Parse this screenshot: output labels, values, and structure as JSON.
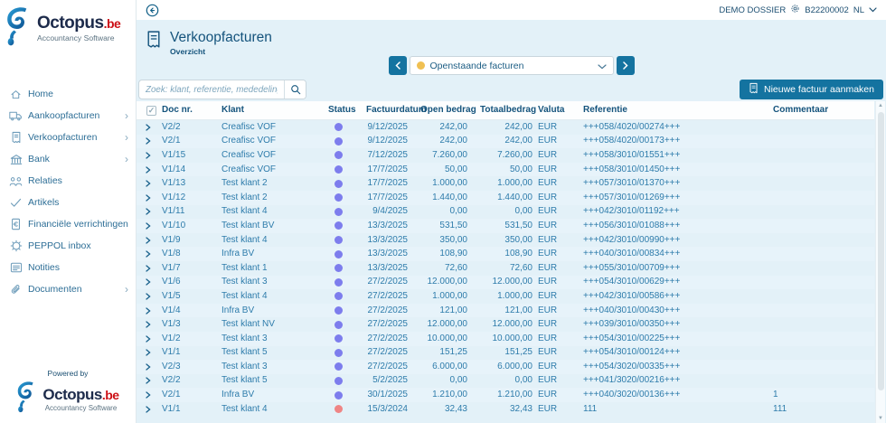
{
  "topbar": {
    "dossier": "DEMO DOSSIER",
    "code": "B22200002",
    "lang": "NL"
  },
  "sidebar": {
    "logo": {
      "name": "Octopus",
      "tld": ".be",
      "tagline": "Accountancy Software"
    },
    "items": [
      {
        "id": "home",
        "label": "Home",
        "icon": "home",
        "chevron": false
      },
      {
        "id": "aankoopfacturen",
        "label": "Aankoopfacturen",
        "icon": "truck",
        "chevron": true
      },
      {
        "id": "verkoopfacturen",
        "label": "Verkoopfacturen",
        "icon": "invoice",
        "chevron": true
      },
      {
        "id": "bank",
        "label": "Bank",
        "icon": "bank",
        "chevron": true
      },
      {
        "id": "relaties",
        "label": "Relaties",
        "icon": "people",
        "chevron": false
      },
      {
        "id": "artikels",
        "label": "Artikels",
        "icon": "check",
        "chevron": false
      },
      {
        "id": "financiele-verrichtingen",
        "label": "Financiële verrichtingen",
        "icon": "doc-euro",
        "chevron": false
      },
      {
        "id": "peppol-inbox",
        "label": "PEPPOL inbox",
        "icon": "gear-globe",
        "chevron": false
      },
      {
        "id": "notities",
        "label": "Notities",
        "icon": "note",
        "chevron": false
      },
      {
        "id": "documenten",
        "label": "Documenten",
        "icon": "paperclip",
        "chevron": true
      }
    ],
    "powered_by": "Powered by"
  },
  "header": {
    "title": "Verkoopfacturen",
    "subtitle": "Overzicht"
  },
  "filter": {
    "selected": "Openstaande facturen"
  },
  "search": {
    "placeholder": "Zoek: klant, referentie, mededeling"
  },
  "actions": {
    "new_invoice": "Nieuwe factuur aanmaken"
  },
  "table": {
    "columns": [
      "Doc nr.",
      "Klant",
      "Status",
      "Factuurdatum",
      "Open bedrag",
      "Totaalbedrag",
      "Valuta",
      "Referentie",
      "Commentaar"
    ],
    "rows": [
      {
        "doc": "V2/2",
        "klant": "Creafisc VOF",
        "status": "open",
        "datum": "9/12/2025",
        "open": "242,00",
        "totaal": "242,00",
        "valuta": "EUR",
        "referentie": "+++058/4020/00274+++",
        "commentaar": ""
      },
      {
        "doc": "V2/1",
        "klant": "Creafisc VOF",
        "status": "open",
        "datum": "9/12/2025",
        "open": "242,00",
        "totaal": "242,00",
        "valuta": "EUR",
        "referentie": "+++058/4020/00173+++",
        "commentaar": ""
      },
      {
        "doc": "V1/15",
        "klant": "Creafisc VOF",
        "status": "open",
        "datum": "7/12/2025",
        "open": "7.260,00",
        "totaal": "7.260,00",
        "valuta": "EUR",
        "referentie": "+++058/3010/01551+++",
        "commentaar": ""
      },
      {
        "doc": "V1/14",
        "klant": "Creafisc VOF",
        "status": "open",
        "datum": "17/7/2025",
        "open": "50,00",
        "totaal": "50,00",
        "valuta": "EUR",
        "referentie": "+++058/3010/01450+++",
        "commentaar": ""
      },
      {
        "doc": "V1/13",
        "klant": "Test klant 2",
        "status": "open",
        "datum": "17/7/2025",
        "open": "1.000,00",
        "totaal": "1.000,00",
        "valuta": "EUR",
        "referentie": "+++057/3010/01370+++",
        "commentaar": ""
      },
      {
        "doc": "V1/12",
        "klant": "Test klant 2",
        "status": "open",
        "datum": "17/7/2025",
        "open": "1.440,00",
        "totaal": "1.440,00",
        "valuta": "EUR",
        "referentie": "+++057/3010/01269+++",
        "commentaar": ""
      },
      {
        "doc": "V1/11",
        "klant": "Test klant 4",
        "status": "open",
        "datum": "9/4/2025",
        "open": "0,00",
        "totaal": "0,00",
        "valuta": "EUR",
        "referentie": "+++042/3010/01192+++",
        "commentaar": ""
      },
      {
        "doc": "V1/10",
        "klant": "Test klant BV",
        "status": "open",
        "datum": "13/3/2025",
        "open": "531,50",
        "totaal": "531,50",
        "valuta": "EUR",
        "referentie": "+++056/3010/01088+++",
        "commentaar": ""
      },
      {
        "doc": "V1/9",
        "klant": "Test klant 4",
        "status": "open",
        "datum": "13/3/2025",
        "open": "350,00",
        "totaal": "350,00",
        "valuta": "EUR",
        "referentie": "+++042/3010/00990+++",
        "commentaar": ""
      },
      {
        "doc": "V1/8",
        "klant": "Infra BV",
        "status": "open",
        "datum": "13/3/2025",
        "open": "108,90",
        "totaal": "108,90",
        "valuta": "EUR",
        "referentie": "+++040/3010/00834+++",
        "commentaar": ""
      },
      {
        "doc": "V1/7",
        "klant": "Test klant 1",
        "status": "open",
        "datum": "13/3/2025",
        "open": "72,60",
        "totaal": "72,60",
        "valuta": "EUR",
        "referentie": "+++055/3010/00709+++",
        "commentaar": ""
      },
      {
        "doc": "V1/6",
        "klant": "Test klant 3",
        "status": "open",
        "datum": "27/2/2025",
        "open": "12.000,00",
        "totaal": "12.000,00",
        "valuta": "EUR",
        "referentie": "+++054/3010/00629+++",
        "commentaar": ""
      },
      {
        "doc": "V1/5",
        "klant": "Test klant 4",
        "status": "open",
        "datum": "27/2/2025",
        "open": "1.000,00",
        "totaal": "1.000,00",
        "valuta": "EUR",
        "referentie": "+++042/3010/00586+++",
        "commentaar": ""
      },
      {
        "doc": "V1/4",
        "klant": "Infra BV",
        "status": "open",
        "datum": "27/2/2025",
        "open": "121,00",
        "totaal": "121,00",
        "valuta": "EUR",
        "referentie": "+++040/3010/00430+++",
        "commentaar": ""
      },
      {
        "doc": "V1/3",
        "klant": "Test klant NV",
        "status": "open",
        "datum": "27/2/2025",
        "open": "12.000,00",
        "totaal": "12.000,00",
        "valuta": "EUR",
        "referentie": "+++039/3010/00350+++",
        "commentaar": ""
      },
      {
        "doc": "V1/2",
        "klant": "Test klant 3",
        "status": "open",
        "datum": "27/2/2025",
        "open": "10.000,00",
        "totaal": "10.000,00",
        "valuta": "EUR",
        "referentie": "+++054/3010/00225+++",
        "commentaar": ""
      },
      {
        "doc": "V1/1",
        "klant": "Test klant 5",
        "status": "open",
        "datum": "27/2/2025",
        "open": "151,25",
        "totaal": "151,25",
        "valuta": "EUR",
        "referentie": "+++054/3010/00124+++",
        "commentaar": ""
      },
      {
        "doc": "V2/3",
        "klant": "Test klant 3",
        "status": "open",
        "datum": "27/2/2025",
        "open": "6.000,00",
        "totaal": "6.000,00",
        "valuta": "EUR",
        "referentie": "+++054/3020/00335+++",
        "commentaar": ""
      },
      {
        "doc": "V2/2",
        "klant": "Test klant 5",
        "status": "open",
        "datum": "5/2/2025",
        "open": "0,00",
        "totaal": "0,00",
        "valuta": "EUR",
        "referentie": "+++041/3020/00216+++",
        "commentaar": ""
      },
      {
        "doc": "V2/1",
        "klant": "Infra BV",
        "status": "open",
        "datum": "30/1/2025",
        "open": "1.210,00",
        "totaal": "1.210,00",
        "valuta": "EUR",
        "referentie": "+++040/3020/00136+++",
        "commentaar": "1"
      },
      {
        "doc": "V1/1",
        "klant": "Test klant 4",
        "status": "overdue",
        "datum": "15/3/2024",
        "open": "32,43",
        "totaal": "32,43",
        "valuta": "EUR",
        "referentie": "111",
        "commentaar": "111"
      }
    ]
  },
  "colors": {
    "accent": "#1473a0",
    "heading": "#14537c",
    "table_text": "#2e7cab",
    "bg": "#e3f1f8",
    "row_alt": "#e7f3fa",
    "status_open": "#7d7ded",
    "status_overdue": "#ef8585",
    "filter_dot": "#f0c052",
    "logo_navy": "#1d2b4b",
    "logo_red": "#cc1016"
  }
}
